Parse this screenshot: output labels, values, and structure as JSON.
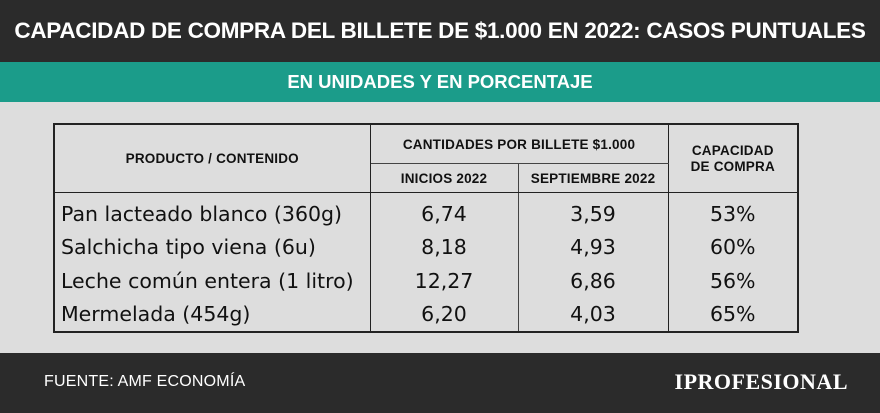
{
  "header": {
    "title": "CAPACIDAD DE COMPRA DEL BILLETE DE $1.000 EN 2022: CASOS PUNTUALES",
    "subtitle": "EN UNIDADES Y EN PORCENTAJE"
  },
  "table": {
    "col_product": "PRODUCTO / CONTENIDO",
    "col_group": "CANTIDADES POR BILLETE  $1.000",
    "col_start": "INICIOS 2022",
    "col_sept": "SEPTIEMBRE 2022",
    "col_capacity_line1": "CAPACIDAD",
    "col_capacity_line2": "DE COMPRA",
    "rows": [
      {
        "product": "Pan lacteado blanco (360g)",
        "start": "6,74",
        "sept": "3,59",
        "capacity": "53%"
      },
      {
        "product": "Salchicha tipo viena (6u)",
        "start": "8,18",
        "sept": "4,93",
        "capacity": "60%"
      },
      {
        "product": "Leche común entera (1 litro)",
        "start": "12,27",
        "sept": "6,86",
        "capacity": "56%"
      },
      {
        "product": "Mermelada (454g)",
        "start": "6,20",
        "sept": "4,03",
        "capacity": "65%"
      }
    ]
  },
  "footer": {
    "source": "FUENTE: AMF ECONOMÍA",
    "brand": "IPROFESIONAL"
  },
  "colors": {
    "dark_bar": "#2b2b2b",
    "accent": "#1b9c8a",
    "background": "#dddddd"
  }
}
